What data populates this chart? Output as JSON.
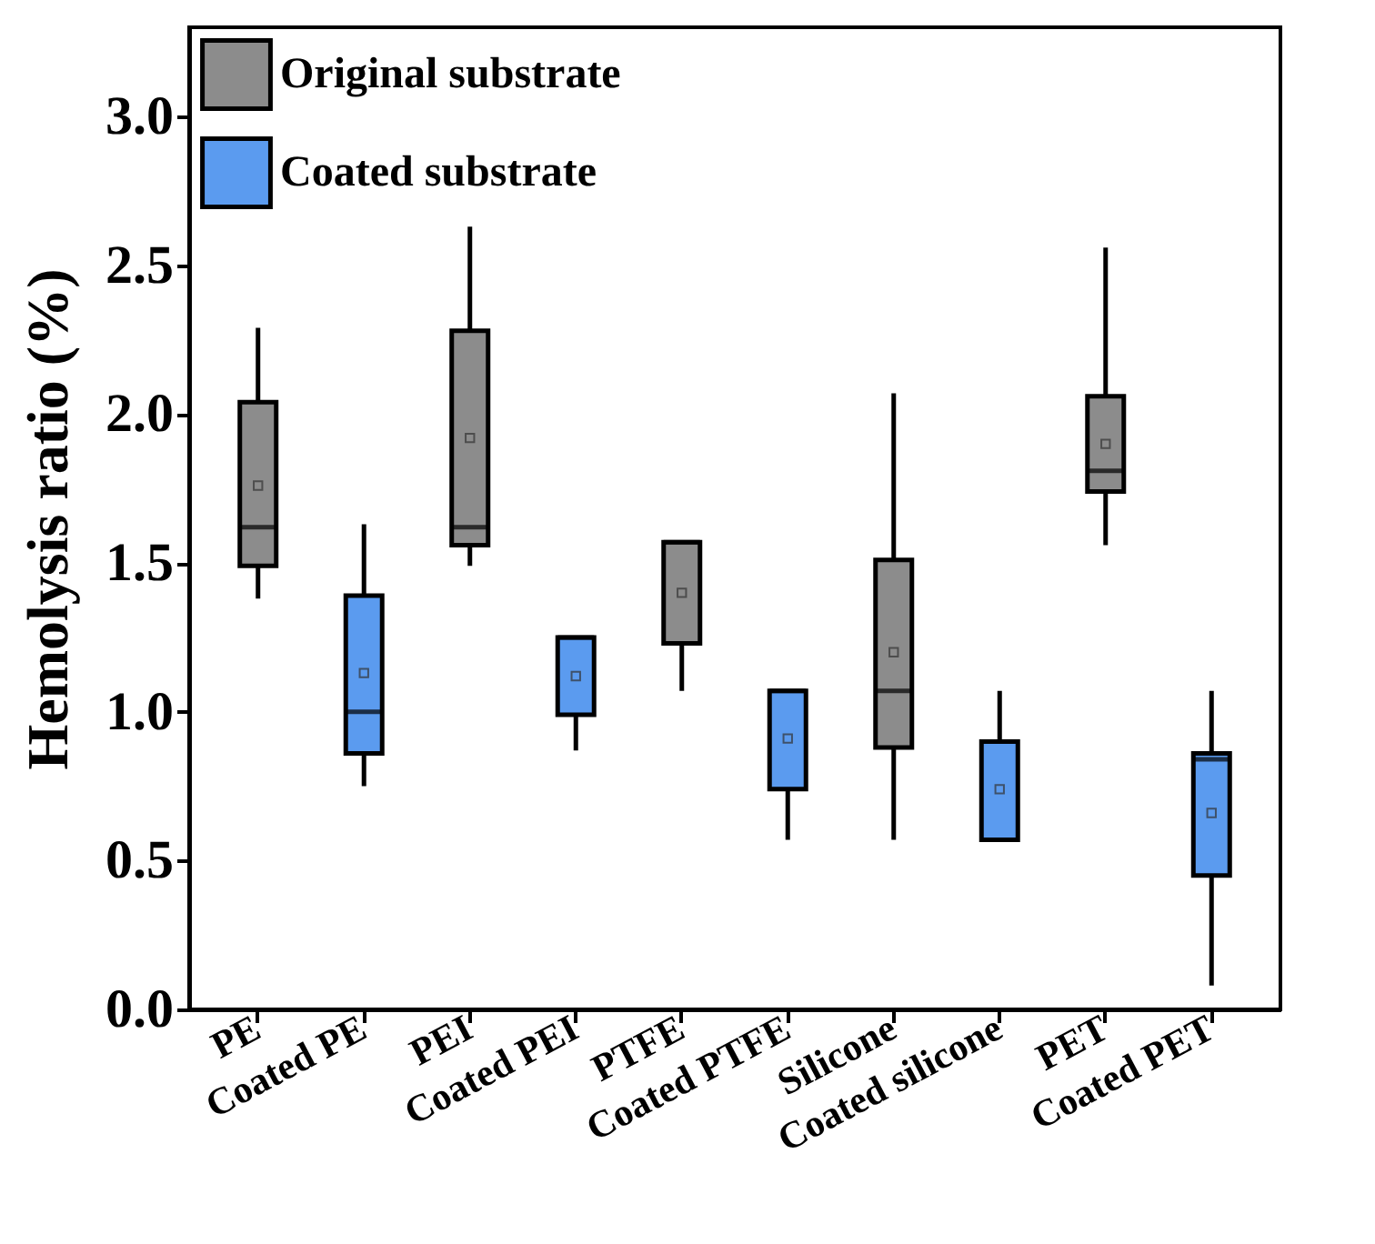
{
  "chart_data": {
    "type": "box",
    "ylabel": "Hemolysis ratio (%)",
    "categories": [
      "PE",
      "Coated PE",
      "PEI",
      "Coated PEI",
      "PTFE",
      "Coated PTFE",
      "Silicone",
      "Coated silicone",
      "PET",
      "Coated PET"
    ],
    "ylim": [
      0,
      3.3
    ],
    "yticks": [
      {
        "value": 0,
        "label": "0.0"
      },
      {
        "value": 0.5,
        "label": "0.5"
      },
      {
        "value": 1,
        "label": "1.0"
      },
      {
        "value": 1.5,
        "label": "1.5"
      },
      {
        "value": 2,
        "label": "2.0"
      },
      {
        "value": 2.5,
        "label": "2.5"
      },
      {
        "value": 3,
        "label": "3.0"
      }
    ],
    "legend": "top left",
    "grid": false,
    "series": [
      {
        "name": "Original substrate",
        "color": "#8c8c8c",
        "boxes": [
          {
            "low": 1.38,
            "q1": 1.49,
            "median": 1.62,
            "q3": 2.04,
            "high": 2.29,
            "mean": 1.76
          },
          null,
          {
            "low": 1.49,
            "q1": 1.56,
            "median": 1.62,
            "q3": 2.28,
            "high": 2.63,
            "mean": 1.92
          },
          null,
          {
            "low": 1.07,
            "q1": 1.23,
            "median": 1.57,
            "q3": 1.57,
            "high": 1.57,
            "mean": 1.4
          },
          null,
          {
            "low": 0.57,
            "q1": 0.88,
            "median": 1.07,
            "q3": 1.51,
            "high": 2.07,
            "mean": 1.2
          },
          null,
          {
            "low": 1.56,
            "q1": 1.74,
            "median": 1.81,
            "q3": 2.06,
            "high": 2.56,
            "mean": 1.9
          },
          null
        ]
      },
      {
        "name": "Coated substrate",
        "color": "#5b9bef",
        "boxes": [
          null,
          {
            "low": 0.75,
            "q1": 0.86,
            "median": 1.0,
            "q3": 1.39,
            "high": 1.63,
            "mean": 1.13
          },
          null,
          {
            "low": 0.87,
            "q1": 0.99,
            "median": 1.25,
            "q3": 1.25,
            "high": 1.25,
            "mean": 1.12
          },
          null,
          {
            "low": 0.57,
            "q1": 0.74,
            "median": 1.07,
            "q3": 1.07,
            "high": 1.07,
            "mean": 0.91
          },
          null,
          {
            "low": 0.57,
            "q1": 0.57,
            "median": 0.57,
            "q3": 0.9,
            "high": 1.07,
            "mean": 0.74
          },
          null,
          {
            "low": 0.08,
            "q1": 0.45,
            "median": 0.84,
            "q3": 0.86,
            "high": 1.07,
            "mean": 0.66
          }
        ]
      }
    ]
  }
}
